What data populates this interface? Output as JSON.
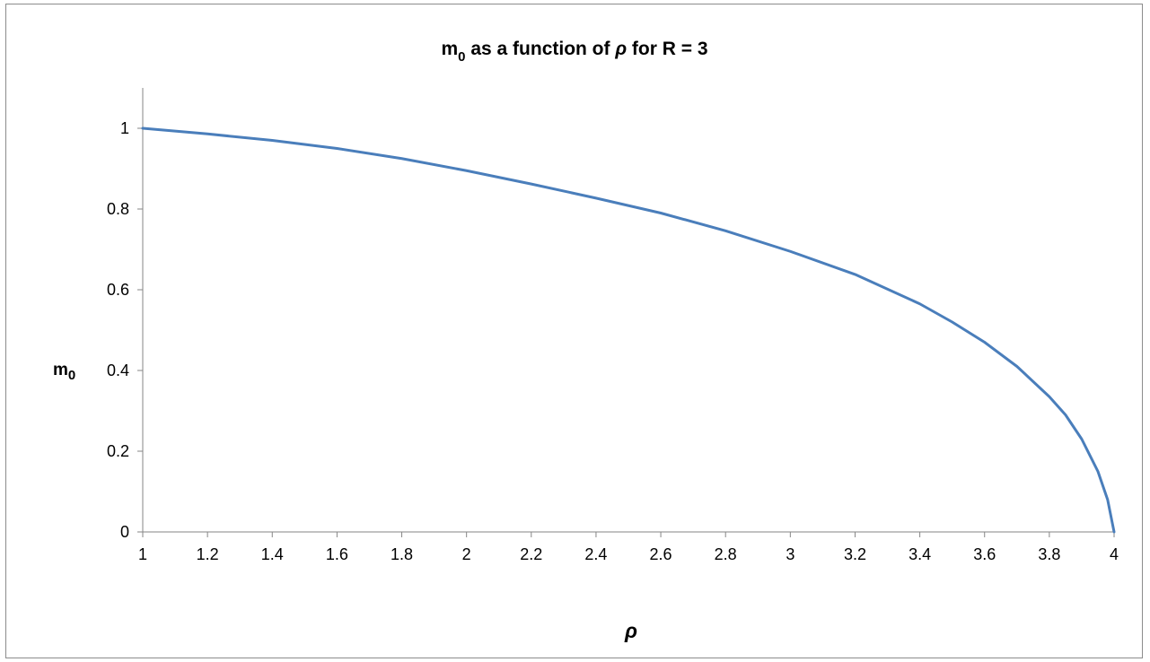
{
  "chart_data": {
    "type": "line",
    "title": {
      "main": "m",
      "sub": "0",
      "middle": " as a function of ",
      "symbol": "ρ",
      "tail": " for R = 3"
    },
    "xlabel": "ρ",
    "ylabel": {
      "main": "m",
      "sub": "0"
    },
    "xlim": [
      1,
      4
    ],
    "ylim": [
      0,
      1.1
    ],
    "x_ticks": [
      1,
      1.2,
      1.4,
      1.6,
      1.8,
      2,
      2.2,
      2.4,
      2.6,
      2.8,
      3,
      3.2,
      3.4,
      3.6,
      3.8,
      4
    ],
    "x_tick_labels": [
      "1",
      "1.2",
      "1.4",
      "1.6",
      "1.8",
      "2",
      "2.2",
      "2.4",
      "2.6",
      "2.8",
      "3",
      "3.2",
      "3.4",
      "3.6",
      "3.8",
      "4"
    ],
    "y_ticks": [
      0,
      0.2,
      0.4,
      0.6,
      0.8,
      1
    ],
    "y_tick_labels": [
      "0",
      "0.2",
      "0.4",
      "0.6",
      "0.8",
      "1"
    ],
    "grid": false,
    "legend": "none",
    "series": [
      {
        "color": "#4a7ebb",
        "x": [
          1.0,
          1.2,
          1.4,
          1.6,
          1.8,
          2.0,
          2.2,
          2.4,
          2.6,
          2.8,
          3.0,
          3.2,
          3.4,
          3.5,
          3.6,
          3.7,
          3.8,
          3.85,
          3.9,
          3.95,
          3.98,
          4.0
        ],
        "y": [
          1.0,
          0.986,
          0.97,
          0.95,
          0.925,
          0.895,
          0.862,
          0.827,
          0.79,
          0.746,
          0.695,
          0.638,
          0.565,
          0.52,
          0.47,
          0.41,
          0.335,
          0.29,
          0.23,
          0.15,
          0.08,
          0.0
        ]
      }
    ]
  }
}
